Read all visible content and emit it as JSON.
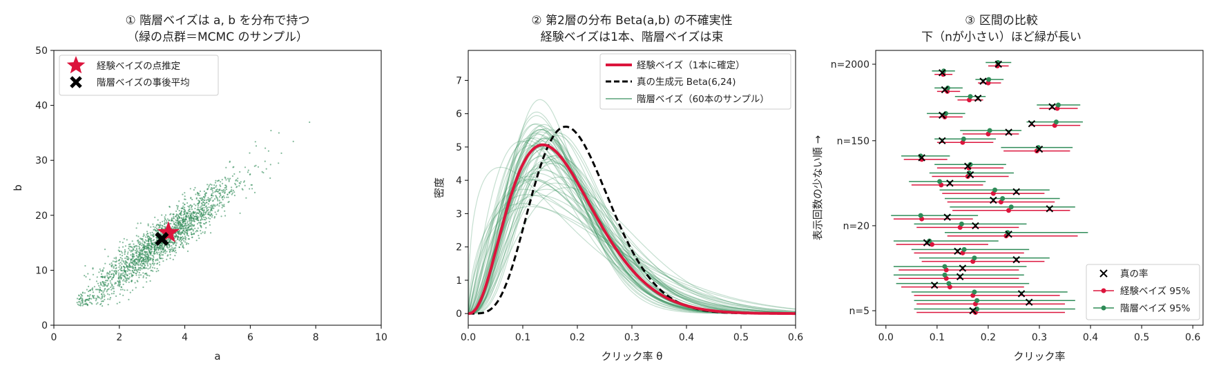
{
  "chart_data": [
    {
      "type": "scatter",
      "title": [
        "① 階層ベイズは a, b を分布で持つ",
        "（緑の点群＝MCMC のサンプル）"
      ],
      "xlabel": "a",
      "ylabel": "b",
      "xlim": [
        0,
        10
      ],
      "ylim": [
        0,
        50
      ],
      "xticks": [
        "0",
        "2",
        "4",
        "6",
        "8",
        "10"
      ],
      "yticks": [
        "0",
        "10",
        "20",
        "30",
        "40",
        "50"
      ],
      "legend_position": "top-left",
      "colors": {
        "samples": "#2e8b57",
        "eb": "#dc143c",
        "hb": "#000000"
      },
      "samples": {
        "count": 2000,
        "a_mean": 3.3,
        "a_sd": 1.15,
        "b_mean": 15.5,
        "b_sd": 5.6,
        "correlation": 0.93
      },
      "series": [
        {
          "name": "経験ベイズの点推定",
          "x": [
            3.5
          ],
          "y": [
            16.8
          ],
          "marker": "star"
        },
        {
          "name": "階層ベイズの事後平均",
          "x": [
            3.3
          ],
          "y": [
            15.7
          ],
          "marker": "x"
        }
      ]
    },
    {
      "type": "line",
      "title": [
        "② 第2層の分布 Beta(a,b) の不確実性",
        "経験ベイズは1本、階層ベイズは束"
      ],
      "xlabel": "クリック率 θ",
      "ylabel": "密度",
      "xlim": [
        0,
        0.6
      ],
      "ylim": [
        -0.35,
        7.9
      ],
      "xticks": [
        "0.0",
        "0.1",
        "0.2",
        "0.3",
        "0.4",
        "0.5",
        "0.6"
      ],
      "yticks": [
        "0",
        "1",
        "2",
        "3",
        "4",
        "5",
        "6",
        "7"
      ],
      "legend_position": "top-right",
      "series": [
        {
          "name": "経験ベイズ（1本に確定）",
          "kind": "beta",
          "a": 3.5,
          "b": 16.8,
          "color": "#dc143c",
          "style": "solid"
        },
        {
          "name": "真の生成元 Beta(6,24)",
          "kind": "beta",
          "a": 6,
          "b": 24,
          "color": "#000000",
          "style": "dashed"
        },
        {
          "name": "階層ベイズ（60本のサンプル）",
          "kind": "beta_bundle",
          "count": 60,
          "color": "#2e8b57",
          "style": "solid"
        }
      ]
    },
    {
      "type": "interval",
      "title": [
        "③ 区間の比較",
        "下（nが小さい）ほど緑が長い"
      ],
      "xlabel": "クリック率",
      "ylabel": "表示回数の少ない順 →",
      "xlim": [
        -0.02,
        0.62
      ],
      "xticks": [
        "0.0",
        "0.1",
        "0.2",
        "0.3",
        "0.4",
        "0.5",
        "0.6"
      ],
      "yticks": [
        {
          "label": "n=5",
          "row": 0
        },
        {
          "label": "n=20",
          "row": 10
        },
        {
          "label": "n=150",
          "row": 20
        },
        {
          "label": "n=2000",
          "row": 29
        }
      ],
      "legend_position": "bottom-right",
      "legend": [
        {
          "name": "真の率",
          "marker": "x",
          "color": "#000000"
        },
        {
          "name": "経験ベイズ 95%",
          "marker": "dot",
          "color": "#dc143c"
        },
        {
          "name": "階層ベイズ 95%",
          "marker": "dot",
          "color": "#2e8b57"
        }
      ],
      "rows": [
        {
          "truth": 0.17,
          "eb": [
            0.175,
            0.06,
            0.35
          ],
          "hb": [
            0.178,
            0.055,
            0.37
          ]
        },
        {
          "truth": 0.28,
          "eb": [
            0.175,
            0.06,
            0.35
          ],
          "hb": [
            0.178,
            0.055,
            0.37
          ]
        },
        {
          "truth": 0.265,
          "eb": [
            0.17,
            0.055,
            0.34
          ],
          "hb": [
            0.173,
            0.05,
            0.355
          ]
        },
        {
          "truth": 0.095,
          "eb": [
            0.125,
            0.03,
            0.27
          ],
          "hb": [
            0.123,
            0.02,
            0.28
          ]
        },
        {
          "truth": 0.145,
          "eb": [
            0.118,
            0.025,
            0.26
          ],
          "hb": [
            0.115,
            0.015,
            0.27
          ]
        },
        {
          "truth": 0.15,
          "eb": [
            0.118,
            0.025,
            0.26
          ],
          "hb": [
            0.115,
            0.015,
            0.275
          ]
        },
        {
          "truth": 0.255,
          "eb": [
            0.17,
            0.07,
            0.31
          ],
          "hb": [
            0.173,
            0.065,
            0.32
          ]
        },
        {
          "truth": 0.14,
          "eb": [
            0.15,
            0.055,
            0.27
          ],
          "hb": [
            0.153,
            0.05,
            0.28
          ]
        },
        {
          "truth": 0.08,
          "eb": [
            0.09,
            0.02,
            0.2
          ],
          "hb": [
            0.085,
            0.015,
            0.22
          ]
        },
        {
          "truth": 0.24,
          "eb": [
            0.235,
            0.12,
            0.375
          ],
          "hb": [
            0.238,
            0.115,
            0.395
          ]
        },
        {
          "truth": 0.175,
          "eb": [
            0.145,
            0.06,
            0.26
          ],
          "hb": [
            0.148,
            0.055,
            0.275
          ]
        },
        {
          "truth": 0.12,
          "eb": [
            0.07,
            0.015,
            0.17
          ],
          "hb": [
            0.068,
            0.01,
            0.18
          ]
        },
        {
          "truth": 0.32,
          "eb": [
            0.24,
            0.13,
            0.36
          ],
          "hb": [
            0.245,
            0.125,
            0.37
          ]
        },
        {
          "truth": 0.21,
          "eb": [
            0.225,
            0.12,
            0.33
          ],
          "hb": [
            0.228,
            0.115,
            0.34
          ]
        },
        {
          "truth": 0.255,
          "eb": [
            0.21,
            0.11,
            0.31
          ],
          "hb": [
            0.213,
            0.105,
            0.32
          ]
        },
        {
          "truth": 0.125,
          "eb": [
            0.108,
            0.05,
            0.19
          ],
          "hb": [
            0.105,
            0.045,
            0.195
          ]
        },
        {
          "truth": 0.165,
          "eb": [
            0.16,
            0.09,
            0.24
          ],
          "hb": [
            0.163,
            0.085,
            0.25
          ]
        },
        {
          "truth": 0.16,
          "eb": [
            0.162,
            0.1,
            0.23
          ],
          "hb": [
            0.165,
            0.095,
            0.235
          ]
        },
        {
          "truth": 0.07,
          "eb": [
            0.07,
            0.035,
            0.12
          ],
          "hb": [
            0.068,
            0.03,
            0.125
          ]
        },
        {
          "truth": 0.3,
          "eb": [
            0.295,
            0.23,
            0.36
          ],
          "hb": [
            0.298,
            0.225,
            0.365
          ]
        },
        {
          "truth": 0.11,
          "eb": [
            0.15,
            0.1,
            0.21
          ],
          "hb": [
            0.152,
            0.095,
            0.215
          ]
        },
        {
          "truth": 0.24,
          "eb": [
            0.2,
            0.15,
            0.26
          ],
          "hb": [
            0.203,
            0.145,
            0.265
          ]
        },
        {
          "truth": 0.285,
          "eb": [
            0.33,
            0.28,
            0.38
          ],
          "hb": [
            0.333,
            0.275,
            0.385
          ]
        },
        {
          "truth": 0.11,
          "eb": [
            0.115,
            0.085,
            0.15
          ],
          "hb": [
            0.117,
            0.08,
            0.155
          ]
        },
        {
          "truth": 0.325,
          "eb": [
            0.335,
            0.3,
            0.375
          ],
          "hb": [
            0.337,
            0.295,
            0.38
          ]
        },
        {
          "truth": 0.18,
          "eb": [
            0.163,
            0.14,
            0.19
          ],
          "hb": [
            0.165,
            0.135,
            0.195
          ]
        },
        {
          "truth": 0.115,
          "eb": [
            0.12,
            0.1,
            0.145
          ],
          "hb": [
            0.121,
            0.095,
            0.15
          ]
        },
        {
          "truth": 0.19,
          "eb": [
            0.2,
            0.18,
            0.225
          ],
          "hb": [
            0.201,
            0.175,
            0.23
          ]
        },
        {
          "truth": 0.11,
          "eb": [
            0.112,
            0.095,
            0.13
          ],
          "hb": [
            0.113,
            0.09,
            0.135
          ]
        },
        {
          "truth": 0.22,
          "eb": [
            0.218,
            0.2,
            0.24
          ],
          "hb": [
            0.219,
            0.195,
            0.245
          ]
        }
      ]
    }
  ]
}
